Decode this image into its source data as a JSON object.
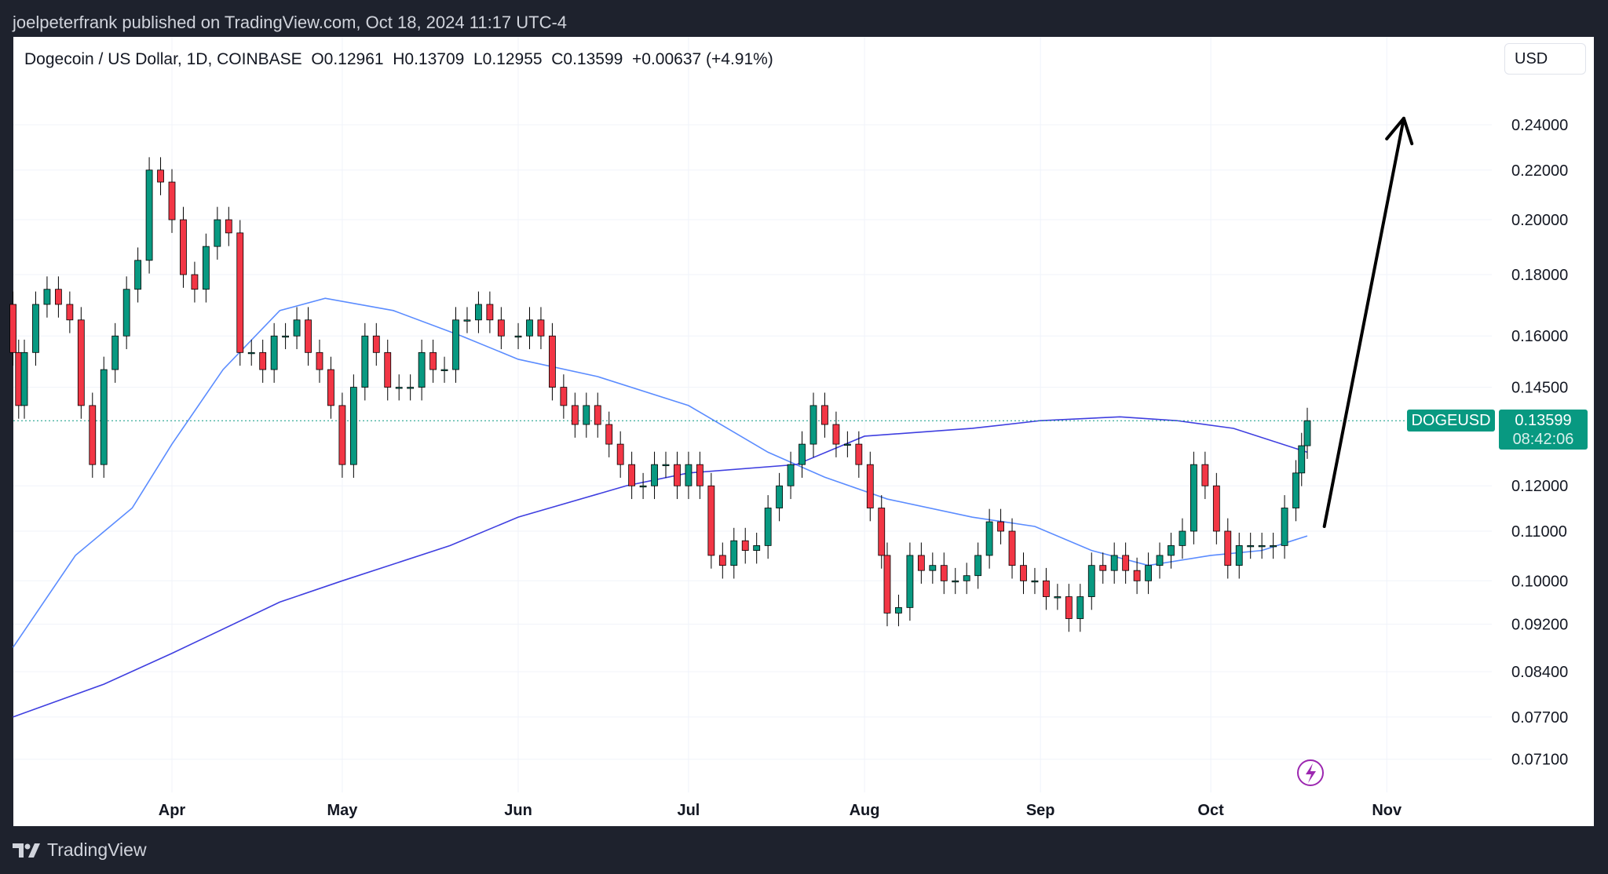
{
  "header": {
    "published": "joelpeterfrank published on TradingView.com, Oct 18, 2024 11:17 UTC-4"
  },
  "legend": {
    "symbol": "Dogecoin / US Dollar, 1D, COINBASE",
    "open": "O0.12961",
    "high": "H0.13709",
    "low": "L0.12955",
    "close": "C0.13599",
    "change": "+0.00637 (+4.91%)"
  },
  "currency_button": "USD",
  "price_tag": {
    "symbol": "DOGEUSD",
    "price": "0.13599",
    "countdown": "08:42:06"
  },
  "footer": {
    "brand": "TradingView"
  },
  "colors": {
    "up": "#089981",
    "down": "#f23645",
    "ma_short": "#5b8cff",
    "ma_long": "#3f3fe0",
    "last_price": "#089981",
    "arrow": "#000000",
    "lightning": "#9c27b0"
  },
  "icons": {
    "alert": "lightning-icon",
    "logo": "tradingview-logo-icon"
  },
  "chart_data": {
    "type": "candlestick",
    "title": "Dogecoin / US Dollar, 1D, COINBASE",
    "y_scale": "log",
    "ylim": [
      0.066,
      0.255
    ],
    "xlim": [
      "2024-03-03",
      "2024-11-10"
    ],
    "y_ticks": [
      "0.24000",
      "0.22000",
      "0.20000",
      "0.18000",
      "0.16000",
      "0.14500",
      "0.12000",
      "0.11000",
      "0.10000",
      "0.09200",
      "0.08400",
      "0.07700",
      "0.07100"
    ],
    "x_ticks": [
      {
        "label": "Apr",
        "date": "2024-04-01"
      },
      {
        "label": "May",
        "date": "2024-05-01"
      },
      {
        "label": "Jun",
        "date": "2024-06-01"
      },
      {
        "label": "Jul",
        "date": "2024-07-01"
      },
      {
        "label": "Aug",
        "date": "2024-08-01"
      },
      {
        "label": "Sep",
        "date": "2024-09-01"
      },
      {
        "label": "Oct",
        "date": "2024-10-01"
      },
      {
        "label": "Nov",
        "date": "2024-11-01"
      }
    ],
    "grid": true,
    "last_price": 0.13599,
    "candles": [
      [
        "2024-03-04",
        0.17,
        0.155
      ],
      [
        "2024-03-05",
        0.155,
        0.14
      ],
      [
        "2024-03-06",
        0.14,
        0.155
      ],
      [
        "2024-03-08",
        0.155,
        0.17
      ],
      [
        "2024-03-10",
        0.17,
        0.175
      ],
      [
        "2024-03-12",
        0.175,
        0.17
      ],
      [
        "2024-03-14",
        0.17,
        0.165
      ],
      [
        "2024-03-16",
        0.165,
        0.14
      ],
      [
        "2024-03-18",
        0.14,
        0.125
      ],
      [
        "2024-03-20",
        0.125,
        0.15
      ],
      [
        "2024-03-22",
        0.15,
        0.16
      ],
      [
        "2024-03-24",
        0.16,
        0.175
      ],
      [
        "2024-03-26",
        0.175,
        0.185
      ],
      [
        "2024-03-28",
        0.185,
        0.22
      ],
      [
        "2024-03-30",
        0.22,
        0.215
      ],
      [
        "2024-04-01",
        0.215,
        0.2
      ],
      [
        "2024-04-03",
        0.2,
        0.18
      ],
      [
        "2024-04-05",
        0.18,
        0.175
      ],
      [
        "2024-04-07",
        0.175,
        0.19
      ],
      [
        "2024-04-09",
        0.19,
        0.2
      ],
      [
        "2024-04-11",
        0.2,
        0.195
      ],
      [
        "2024-04-13",
        0.195,
        0.155
      ],
      [
        "2024-04-15",
        0.155,
        0.155
      ],
      [
        "2024-04-17",
        0.155,
        0.15
      ],
      [
        "2024-04-19",
        0.15,
        0.16
      ],
      [
        "2024-04-21",
        0.16,
        0.16
      ],
      [
        "2024-04-23",
        0.16,
        0.165
      ],
      [
        "2024-04-25",
        0.165,
        0.155
      ],
      [
        "2024-04-27",
        0.155,
        0.15
      ],
      [
        "2024-04-29",
        0.15,
        0.14
      ],
      [
        "2024-05-01",
        0.14,
        0.125
      ],
      [
        "2024-05-03",
        0.125,
        0.145
      ],
      [
        "2024-05-05",
        0.145,
        0.16
      ],
      [
        "2024-05-07",
        0.16,
        0.155
      ],
      [
        "2024-05-09",
        0.155,
        0.145
      ],
      [
        "2024-05-11",
        0.145,
        0.145
      ],
      [
        "2024-05-13",
        0.145,
        0.145
      ],
      [
        "2024-05-15",
        0.145,
        0.155
      ],
      [
        "2024-05-17",
        0.155,
        0.15
      ],
      [
        "2024-05-19",
        0.15,
        0.15
      ],
      [
        "2024-05-21",
        0.15,
        0.165
      ],
      [
        "2024-05-23",
        0.165,
        0.165
      ],
      [
        "2024-05-25",
        0.165,
        0.17
      ],
      [
        "2024-05-27",
        0.17,
        0.165
      ],
      [
        "2024-05-29",
        0.165,
        0.16
      ],
      [
        "2024-06-01",
        0.16,
        0.16
      ],
      [
        "2024-06-03",
        0.16,
        0.165
      ],
      [
        "2024-06-05",
        0.165,
        0.16
      ],
      [
        "2024-06-07",
        0.16,
        0.145
      ],
      [
        "2024-06-09",
        0.145,
        0.14
      ],
      [
        "2024-06-11",
        0.14,
        0.135
      ],
      [
        "2024-06-13",
        0.135,
        0.14
      ],
      [
        "2024-06-15",
        0.14,
        0.135
      ],
      [
        "2024-06-17",
        0.135,
        0.13
      ],
      [
        "2024-06-19",
        0.13,
        0.125
      ],
      [
        "2024-06-21",
        0.125,
        0.12
      ],
      [
        "2024-06-23",
        0.12,
        0.12
      ],
      [
        "2024-06-25",
        0.12,
        0.125
      ],
      [
        "2024-06-27",
        0.125,
        0.125
      ],
      [
        "2024-06-29",
        0.125,
        0.12
      ],
      [
        "2024-07-01",
        0.12,
        0.125
      ],
      [
        "2024-07-03",
        0.125,
        0.12
      ],
      [
        "2024-07-05",
        0.12,
        0.105
      ],
      [
        "2024-07-07",
        0.105,
        0.103
      ],
      [
        "2024-07-09",
        0.103,
        0.108
      ],
      [
        "2024-07-11",
        0.108,
        0.106
      ],
      [
        "2024-07-13",
        0.106,
        0.107
      ],
      [
        "2024-07-15",
        0.107,
        0.115
      ],
      [
        "2024-07-17",
        0.115,
        0.12
      ],
      [
        "2024-07-19",
        0.12,
        0.125
      ],
      [
        "2024-07-21",
        0.125,
        0.13
      ],
      [
        "2024-07-23",
        0.13,
        0.14
      ],
      [
        "2024-07-25",
        0.14,
        0.135
      ],
      [
        "2024-07-27",
        0.135,
        0.13
      ],
      [
        "2024-07-29",
        0.13,
        0.13
      ],
      [
        "2024-07-31",
        0.13,
        0.125
      ],
      [
        "2024-08-02",
        0.125,
        0.115
      ],
      [
        "2024-08-04",
        0.115,
        0.105
      ],
      [
        "2024-08-05",
        0.105,
        0.094
      ],
      [
        "2024-08-07",
        0.094,
        0.095
      ],
      [
        "2024-08-09",
        0.095,
        0.105
      ],
      [
        "2024-08-11",
        0.105,
        0.102
      ],
      [
        "2024-08-13",
        0.102,
        0.103
      ],
      [
        "2024-08-15",
        0.103,
        0.1
      ],
      [
        "2024-08-17",
        0.1,
        0.1
      ],
      [
        "2024-08-19",
        0.1,
        0.101
      ],
      [
        "2024-08-21",
        0.101,
        0.105
      ],
      [
        "2024-08-23",
        0.105,
        0.112
      ],
      [
        "2024-08-25",
        0.112,
        0.11
      ],
      [
        "2024-08-27",
        0.11,
        0.103
      ],
      [
        "2024-08-29",
        0.103,
        0.1
      ],
      [
        "2024-08-31",
        0.1,
        0.1
      ],
      [
        "2024-09-02",
        0.1,
        0.097
      ],
      [
        "2024-09-04",
        0.097,
        0.097
      ],
      [
        "2024-09-06",
        0.097,
        0.093
      ],
      [
        "2024-09-08",
        0.093,
        0.097
      ],
      [
        "2024-09-10",
        0.097,
        0.103
      ],
      [
        "2024-09-12",
        0.103,
        0.102
      ],
      [
        "2024-09-14",
        0.102,
        0.105
      ],
      [
        "2024-09-16",
        0.105,
        0.102
      ],
      [
        "2024-09-18",
        0.102,
        0.1
      ],
      [
        "2024-09-20",
        0.1,
        0.103
      ],
      [
        "2024-09-22",
        0.103,
        0.105
      ],
      [
        "2024-09-24",
        0.105,
        0.107
      ],
      [
        "2024-09-26",
        0.107,
        0.11
      ],
      [
        "2024-09-28",
        0.11,
        0.125
      ],
      [
        "2024-09-30",
        0.125,
        0.12
      ],
      [
        "2024-10-02",
        0.12,
        0.11
      ],
      [
        "2024-10-04",
        0.11,
        0.103
      ],
      [
        "2024-10-06",
        0.103,
        0.107
      ],
      [
        "2024-10-08",
        0.107,
        0.107
      ],
      [
        "2024-10-10",
        0.107,
        0.107
      ],
      [
        "2024-10-12",
        0.107,
        0.107
      ],
      [
        "2024-10-14",
        0.107,
        0.115
      ],
      [
        "2024-10-16",
        0.115,
        0.123
      ],
      [
        "2024-10-17",
        0.123,
        0.12961
      ],
      [
        "2024-10-18",
        0.12961,
        0.13599
      ]
    ],
    "series": [
      {
        "type": "line",
        "color": "#5b8cff",
        "points": [
          [
            "2024-03-04",
            0.088
          ],
          [
            "2024-03-15",
            0.105
          ],
          [
            "2024-03-25",
            0.115
          ],
          [
            "2024-04-01",
            0.13
          ],
          [
            "2024-04-10",
            0.15
          ],
          [
            "2024-04-20",
            0.168
          ],
          [
            "2024-04-28",
            0.172
          ],
          [
            "2024-05-10",
            0.168
          ],
          [
            "2024-05-22",
            0.16
          ],
          [
            "2024-06-01",
            0.153
          ],
          [
            "2024-06-15",
            0.148
          ],
          [
            "2024-07-01",
            0.14
          ],
          [
            "2024-07-15",
            0.128
          ],
          [
            "2024-07-25",
            0.122
          ],
          [
            "2024-08-05",
            0.117
          ],
          [
            "2024-08-20",
            0.113
          ],
          [
            "2024-08-31",
            0.111
          ],
          [
            "2024-09-10",
            0.106
          ],
          [
            "2024-09-20",
            0.103
          ],
          [
            "2024-10-01",
            0.105
          ],
          [
            "2024-10-10",
            0.106
          ],
          [
            "2024-10-18",
            0.109
          ]
        ]
      },
      {
        "type": "line",
        "color": "#3f3fe0",
        "points": [
          [
            "2024-03-04",
            0.077
          ],
          [
            "2024-03-20",
            0.082
          ],
          [
            "2024-04-01",
            0.087
          ],
          [
            "2024-04-20",
            0.096
          ],
          [
            "2024-05-01",
            0.1
          ],
          [
            "2024-05-20",
            0.107
          ],
          [
            "2024-06-01",
            0.113
          ],
          [
            "2024-06-20",
            0.12
          ],
          [
            "2024-07-01",
            0.123
          ],
          [
            "2024-07-20",
            0.125
          ],
          [
            "2024-08-01",
            0.132
          ],
          [
            "2024-08-20",
            0.134
          ],
          [
            "2024-09-01",
            0.136
          ],
          [
            "2024-09-15",
            0.137
          ],
          [
            "2024-09-25",
            0.136
          ],
          [
            "2024-10-05",
            0.134
          ],
          [
            "2024-10-18",
            0.128
          ]
        ]
      }
    ],
    "annotations": [
      {
        "type": "arrow",
        "from": [
          "2024-10-21",
          0.111
        ],
        "to": [
          "2024-11-04",
          0.243
        ]
      }
    ]
  }
}
